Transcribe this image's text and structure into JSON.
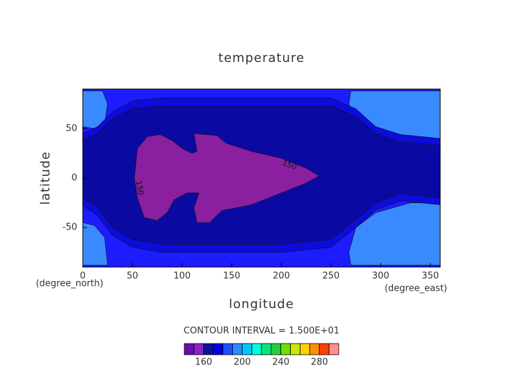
{
  "chart_data": {
    "type": "contour",
    "title": "temperature",
    "x_label": "longitude",
    "y_label": "latitude",
    "x_unit": "(degree_east)",
    "y_unit": "(degree_north)",
    "xlim": [
      0,
      360
    ],
    "ylim": [
      -90,
      90
    ],
    "xticks": [
      0,
      50,
      100,
      150,
      200,
      250,
      300,
      350
    ],
    "yticks": [
      -50,
      0,
      50
    ],
    "regions": [
      {
        "level": 180,
        "color": "#1c1cff",
        "lon": [
          0,
          360,
          360,
          0
        ],
        "lat": [
          90,
          90,
          -90,
          -90
        ]
      },
      {
        "level": 195,
        "color": "#3a8aff",
        "lon": [
          0,
          20,
          25,
          22,
          12,
          0
        ],
        "lat": [
          88,
          88,
          75,
          55,
          50,
          52
        ]
      },
      {
        "level": 195,
        "color": "#3a8aff",
        "lon": [
          270,
          360,
          360,
          330,
          295,
          275,
          268
        ],
        "lat": [
          88,
          88,
          32,
          32,
          40,
          55,
          75
        ]
      },
      {
        "level": 195,
        "color": "#3a8aff",
        "lon": [
          360,
          330,
          295,
          275,
          268,
          270,
          360
        ],
        "lat": [
          -25,
          -25,
          -35,
          -50,
          -75,
          -88,
          -88
        ]
      },
      {
        "level": 195,
        "color": "#3a8aff",
        "lon": [
          0,
          12,
          22,
          25,
          0
        ],
        "lat": [
          -45,
          -48,
          -60,
          -88,
          -88
        ]
      },
      {
        "level": 170,
        "color": "#0c0cdc",
        "lon": [
          0,
          15,
          30,
          50,
          80,
          250,
          275,
          295,
          320,
          360,
          360,
          320,
          295,
          275,
          250,
          200,
          80,
          50,
          30,
          15,
          0
        ],
        "lat": [
          45,
          52,
          67,
          78,
          81,
          81,
          70,
          52,
          44,
          40,
          -27,
          -23,
          -32,
          -50,
          -70,
          -75,
          -75,
          -70,
          -58,
          -38,
          -28
        ]
      },
      {
        "level": 165,
        "color": "#0a0aa2",
        "lon": [
          0,
          15,
          30,
          50,
          80,
          250,
          275,
          295,
          320,
          360,
          360,
          320,
          295,
          275,
          250,
          200,
          80,
          50,
          30,
          15,
          0
        ],
        "lat": [
          38,
          45,
          60,
          70,
          73,
          73,
          62,
          45,
          37,
          33,
          -20,
          -16,
          -25,
          -42,
          -62,
          -67,
          -67,
          -62,
          -50,
          -30,
          -20
        ]
      },
      {
        "level": 150,
        "color": "#8a1fa0",
        "lon": [
          55,
          65,
          78,
          90,
          100,
          110,
          115,
          112,
          135,
          145,
          170,
          200,
          225,
          238,
          225,
          200,
          170,
          140,
          128,
          115,
          112,
          117,
          105,
          92,
          85,
          75,
          62,
          55,
          52
        ],
        "lat": [
          30,
          42,
          44,
          38,
          30,
          25,
          27,
          45,
          43,
          35,
          27,
          20,
          10,
          2,
          -5,
          -15,
          -27,
          -33,
          -45,
          -45,
          -30,
          -15,
          -15,
          -22,
          -35,
          -43,
          -40,
          -20,
          0
        ]
      }
    ],
    "contour_labels": [
      {
        "label": "150",
        "x": 208,
        "y": 13
      },
      {
        "label": "150",
        "x": 57,
        "y": -10
      }
    ],
    "contour_interval": "CONTOUR INTERVAL = 1.500E+01",
    "colorbar": {
      "levels": [
        140,
        150,
        160,
        170,
        180,
        190,
        200,
        210,
        220,
        230,
        240,
        250,
        260,
        270,
        280,
        290,
        300
      ],
      "colors": [
        "#6a0dad",
        "#8a22c8",
        "#10109a",
        "#0000e0",
        "#1e50ff",
        "#2a8cff",
        "#00c8ff",
        "#00ffe0",
        "#00e87c",
        "#20d040",
        "#70e000",
        "#c8e800",
        "#ffd000",
        "#ff9000",
        "#ff4000",
        "#ff9090"
      ],
      "ticks": [
        160,
        200,
        240,
        280
      ]
    }
  }
}
